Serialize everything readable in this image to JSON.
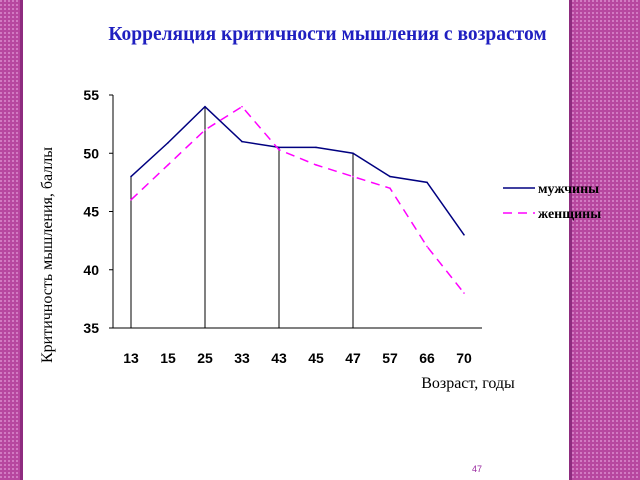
{
  "slide": {
    "title": "Корреляция критичности мышления с возрастом",
    "page_number": "47",
    "frame_color": "#b7479f",
    "frame_light": "#d27ac2",
    "title_color": "#1f1fc0"
  },
  "chart_data": {
    "type": "line",
    "title": "Корреляция критичности мышления с возрастом",
    "xlabel": "Возраст, годы",
    "ylabel": "Критичность мышления, баллы",
    "categories": [
      "13",
      "15",
      "25",
      "33",
      "43",
      "45",
      "47",
      "57",
      "66",
      "70"
    ],
    "ylim": [
      35,
      55
    ],
    "yticks": [
      35,
      40,
      45,
      50,
      55
    ],
    "vertical_lines_at": [
      "25",
      "43",
      "47"
    ],
    "series": [
      {
        "name": "мужчины",
        "color": "#000080",
        "dash": "solid",
        "values": [
          48,
          50.9,
          54,
          51,
          50.5,
          50.5,
          50,
          48,
          47.5,
          43
        ]
      },
      {
        "name": "женщины",
        "color": "#ff00ff",
        "dash": "dashed",
        "values": [
          46,
          49,
          52,
          54,
          50.3,
          49,
          48,
          47,
          42,
          38
        ]
      }
    ],
    "legend_position": "right",
    "grid": false
  }
}
